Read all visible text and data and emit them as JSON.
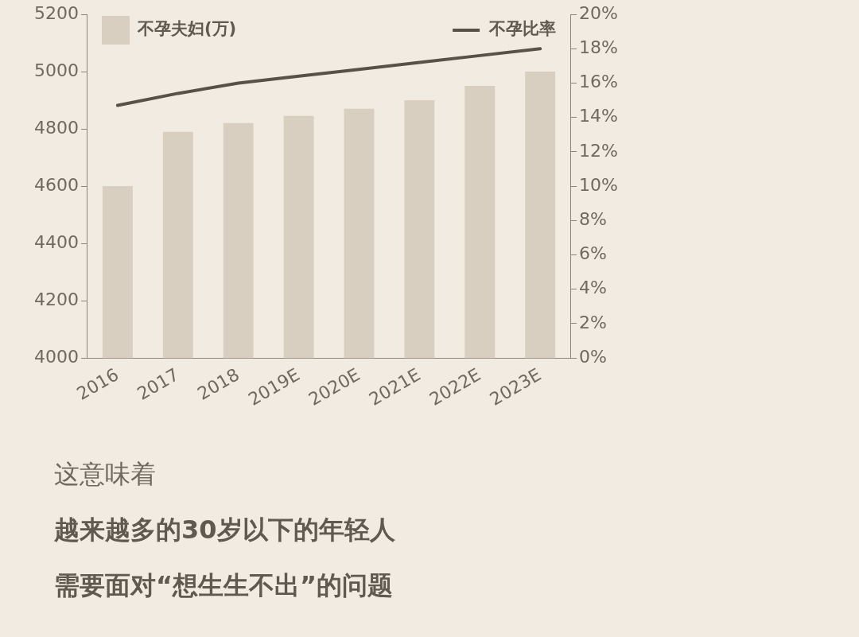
{
  "chart_data": {
    "type": "bar",
    "categories": [
      "2016",
      "2017",
      "2018",
      "2019E",
      "2020E",
      "2021E",
      "2022E",
      "2023E"
    ],
    "series": [
      {
        "name": "不孕夫妇(万)",
        "color": "#d8cfc0",
        "values": [
          4600,
          4790,
          4820,
          4845,
          4870,
          4900,
          4950,
          5000
        ]
      },
      {
        "name": "不孕比率",
        "type": "line",
        "axis": "y2",
        "color": "#575246",
        "values": [
          14.7,
          15.4,
          16.0,
          16.4,
          16.8,
          17.2,
          17.6,
          18.0
        ]
      }
    ],
    "ylim": [
      4000,
      5200
    ],
    "yticks": [
      4000,
      4200,
      4400,
      4600,
      4800,
      5000,
      5200
    ],
    "y2lim": [
      0,
      20
    ],
    "y2ticks": [
      {
        "value": 0,
        "label": "0%"
      },
      {
        "value": 2,
        "label": "2%"
      },
      {
        "value": 4,
        "label": "4%"
      },
      {
        "value": 6,
        "label": "6%"
      },
      {
        "value": 8,
        "label": "8%"
      },
      {
        "value": 10,
        "label": "10%"
      },
      {
        "value": 12,
        "label": "12%"
      },
      {
        "value": 14,
        "label": "14%"
      },
      {
        "value": 16,
        "label": "16%"
      },
      {
        "value": 18,
        "label": "18%"
      },
      {
        "value": 20,
        "label": "20%"
      }
    ],
    "grid": false,
    "legend": "top",
    "marker": "none",
    "annotations": [
      "这意味着",
      "越来越多的30岁以下的年轻人",
      "需要面对“想生生不出”的问题"
    ]
  }
}
